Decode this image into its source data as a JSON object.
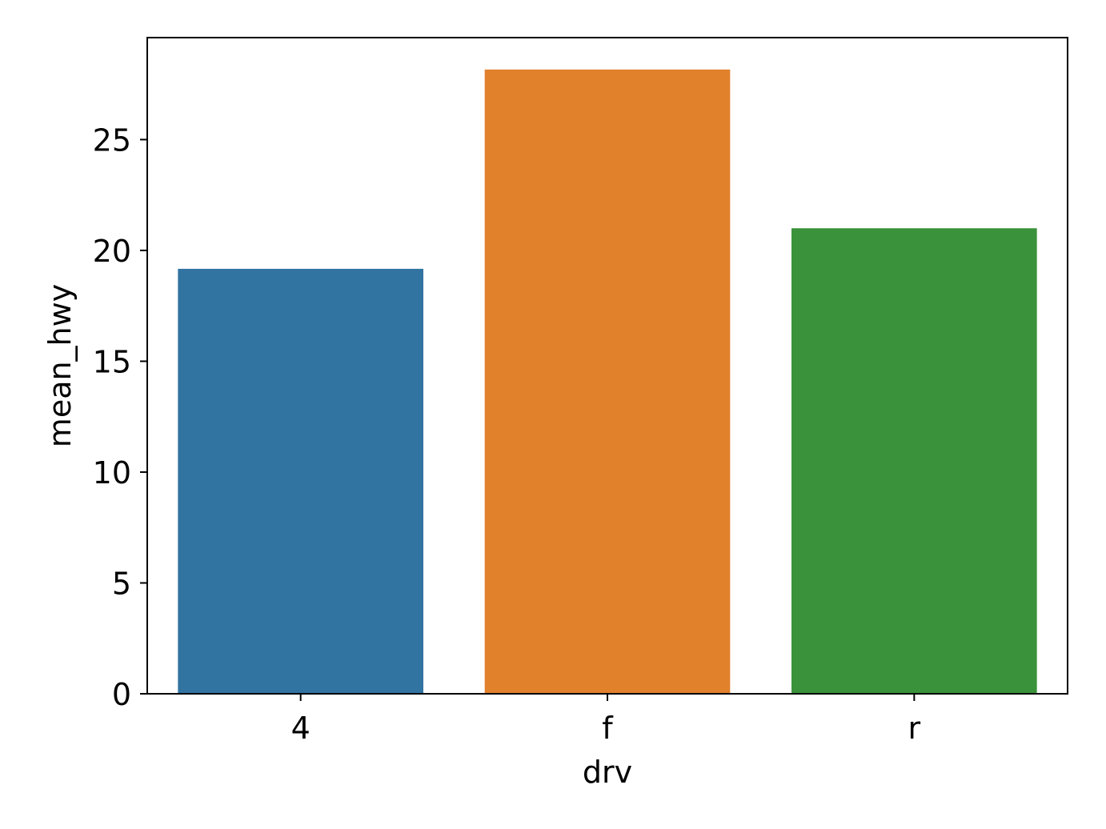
{
  "chart_data": {
    "type": "bar",
    "title": "",
    "xlabel": "drv",
    "ylabel": "mean_hwy",
    "categories": [
      "4",
      "f",
      "r"
    ],
    "values": [
      19.17,
      28.16,
      21.0
    ],
    "colors": [
      "#3274a1",
      "#e1812c",
      "#3a923a"
    ],
    "ylim": [
      0,
      29.6
    ],
    "yticks": [
      0,
      5,
      10,
      15,
      20,
      25
    ],
    "grid": false,
    "legend": "none"
  }
}
